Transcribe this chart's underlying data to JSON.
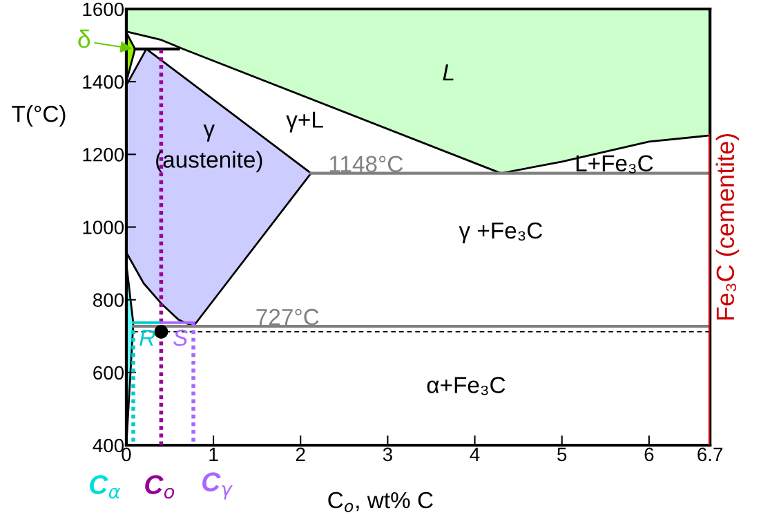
{
  "chart_data": {
    "type": "line",
    "xlabel": "C$_{o}$, wt% C",
    "ylabel": "T(°C)",
    "y2label": "Fe₃C (cementite)",
    "xlim": [
      0,
      6.7
    ],
    "ylim": [
      400,
      1600
    ],
    "xticks": [
      0,
      1,
      2,
      3,
      4,
      5,
      6,
      6.7
    ],
    "yticks": [
      400,
      600,
      800,
      1000,
      1200,
      1400,
      1600
    ],
    "grid": false,
    "legend": false,
    "series": [
      {
        "type": "area",
        "color": "#ccffcc",
        "x": [
          0,
          0,
          0.4,
          0.65,
          4.3,
          5.0,
          6.0,
          6.7,
          6.7
        ],
        "values": [
          1600,
          1538,
          1515,
          1490,
          1148,
          1180,
          1235,
          1252,
          1600
        ]
      },
      {
        "type": "area",
        "color": "#ccccff",
        "x": [
          0,
          0.23,
          2.12,
          0.77,
          0.6,
          0.4,
          0.2,
          0
        ],
        "values": [
          1390,
          1490,
          1148,
          727,
          745,
          790,
          845,
          930
        ]
      },
      {
        "type": "area",
        "color": "#99ee00",
        "x": [
          0,
          0.1,
          0
        ],
        "values": [
          1535,
          1490,
          1400
        ]
      },
      {
        "type": "area",
        "color": "#66ffff",
        "x": [
          0,
          0.08,
          0
        ],
        "values": [
          900,
          735,
          400
        ]
      },
      {
        "color": "#808080",
        "x": [
          2.12,
          6.7
        ],
        "values": [
          1148,
          1148
        ]
      },
      {
        "color": "#808080",
        "x": [
          0.08,
          6.7
        ],
        "values": [
          727,
          727
        ]
      },
      {
        "color": "#000000",
        "line_style": "dashed",
        "x": [
          0.08,
          6.7
        ],
        "values": [
          712,
          712
        ]
      },
      {
        "color": "#000000",
        "x": [
          0.1,
          0.6
        ],
        "values": [
          1490,
          1490
        ]
      },
      {
        "color": "#cc0000",
        "x": [
          6.7,
          6.7
        ],
        "values": [
          400,
          1252
        ]
      },
      {
        "color": "#00cccc",
        "line_style": "dotted",
        "x": [
          0.08,
          0.08
        ],
        "values": [
          410,
          720
        ]
      },
      {
        "color": "#990099",
        "line_style": "dotted",
        "x": [
          0.4,
          0.4
        ],
        "values": [
          400,
          1490
        ]
      },
      {
        "color": "#aa66ff",
        "line_style": "dotted",
        "x": [
          0.77,
          0.77
        ],
        "values": [
          410,
          735
        ]
      },
      {
        "color": "#00cccc",
        "x": [
          0.08,
          0.4
        ],
        "values": [
          737,
          737
        ]
      },
      {
        "color": "#aa66ff",
        "x": [
          0.4,
          0.77
        ],
        "values": [
          737,
          737
        ]
      },
      {
        "type": "scatter",
        "color": "#000000",
        "marker": "circle",
        "x": [
          0.4
        ],
        "values": [
          712
        ]
      }
    ],
    "annotations": [
      "L",
      "γ+L",
      "γ",
      "(austenite)",
      "1148°C",
      "L+Fe₃C",
      "γ +Fe₃C",
      "727°C",
      "α+Fe₃C",
      "R",
      "S",
      {
        "text": "δ",
        "x": 0.09,
        "y": 1490
      },
      "C$_{α}$",
      "C$_{o}$",
      "C$_{γ}$"
    ]
  }
}
